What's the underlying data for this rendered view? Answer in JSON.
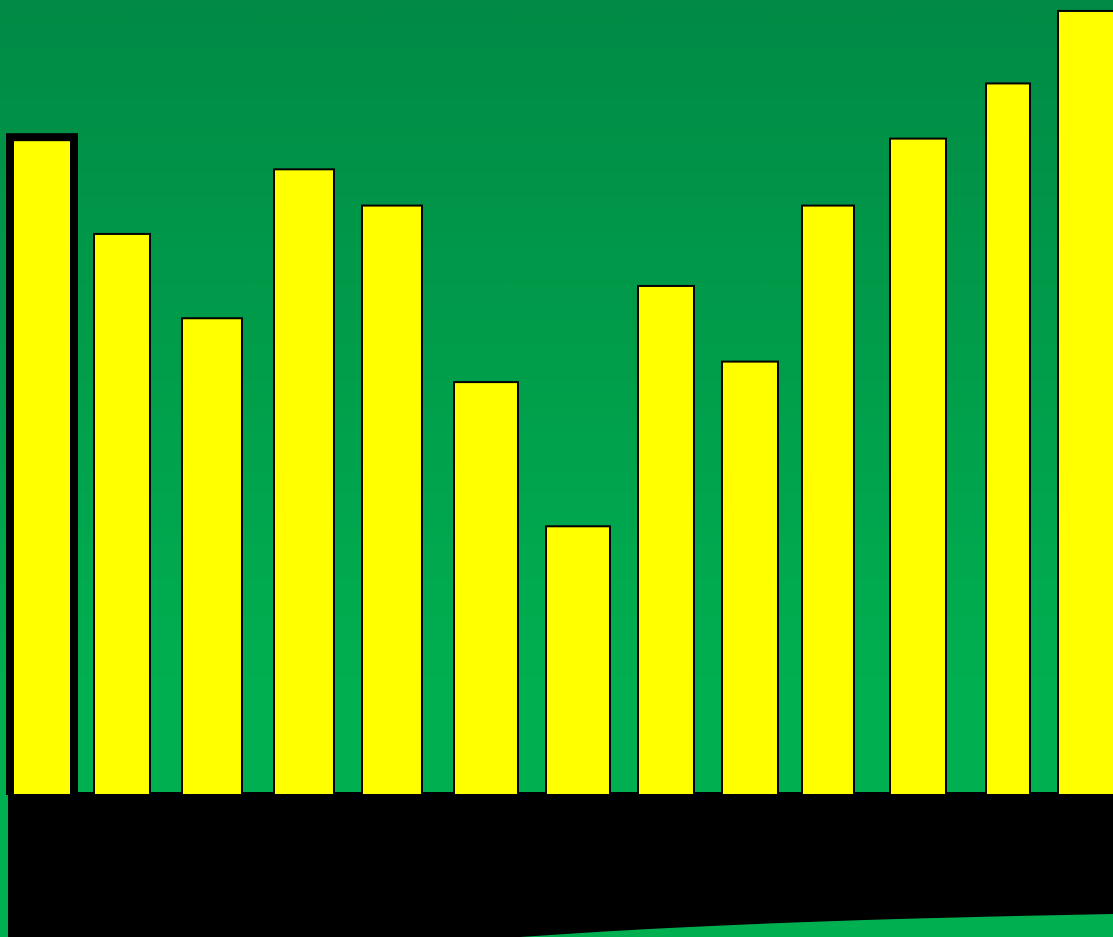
{
  "colors": {
    "background_top": "#008a45",
    "background_bottom": "#00b050",
    "bar_fill": "#ffff00",
    "bar_stroke": "#000000",
    "selected_bar_border": "#000000",
    "base": "#000000"
  },
  "chart_data": {
    "type": "bar",
    "title": "",
    "xlabel": "",
    "ylabel": "",
    "axes_visible": false,
    "grid": false,
    "legend": "none",
    "ylim": [
      0,
      100
    ],
    "values": [
      83.1,
      71.2,
      60.5,
      79.4,
      74.8,
      52.4,
      34.1,
      64.6,
      55.0,
      74.8,
      83.3,
      90.3,
      99.5
    ],
    "selected_index": 0
  }
}
